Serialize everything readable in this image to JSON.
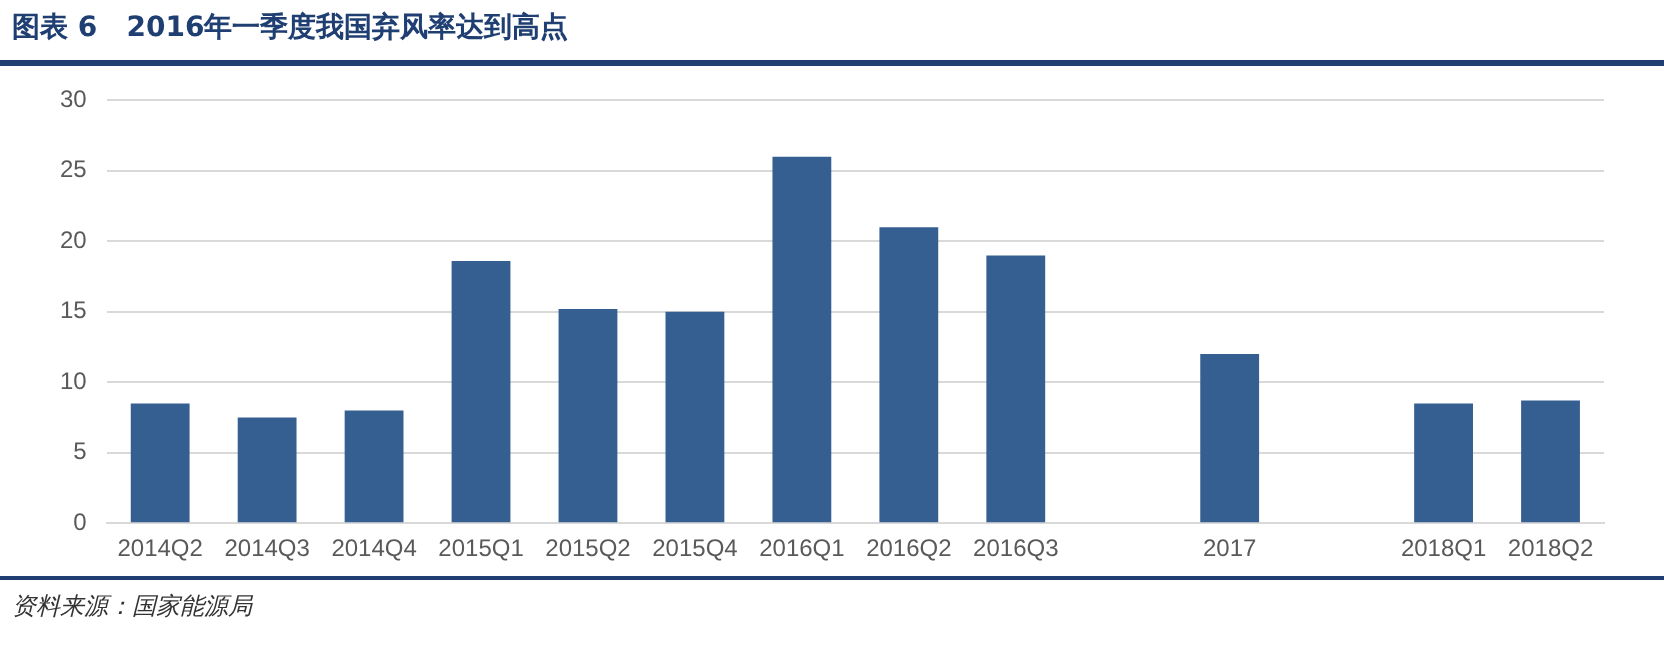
{
  "chart_data": {
    "type": "bar",
    "title": "图表 6   2016年一季度我国弃风率达到高点",
    "categories": [
      "2014Q2",
      "2014Q3",
      "2014Q4",
      "2015Q1",
      "2015Q2",
      "2015Q4",
      "2016Q1",
      "2016Q2",
      "2016Q3",
      null,
      "2017",
      null,
      "2018Q1",
      "2018Q2"
    ],
    "values": [
      8.5,
      7.5,
      8,
      18.6,
      15.2,
      15,
      26,
      21,
      19,
      null,
      12,
      null,
      8.5,
      8.7
    ],
    "color": "#355f91",
    "ylim": [
      0,
      30
    ],
    "yticks": [
      0,
      5,
      10,
      15,
      20,
      25,
      30
    ],
    "grid": "y",
    "annotations": [
      "资料来源：国家能源局"
    ]
  }
}
